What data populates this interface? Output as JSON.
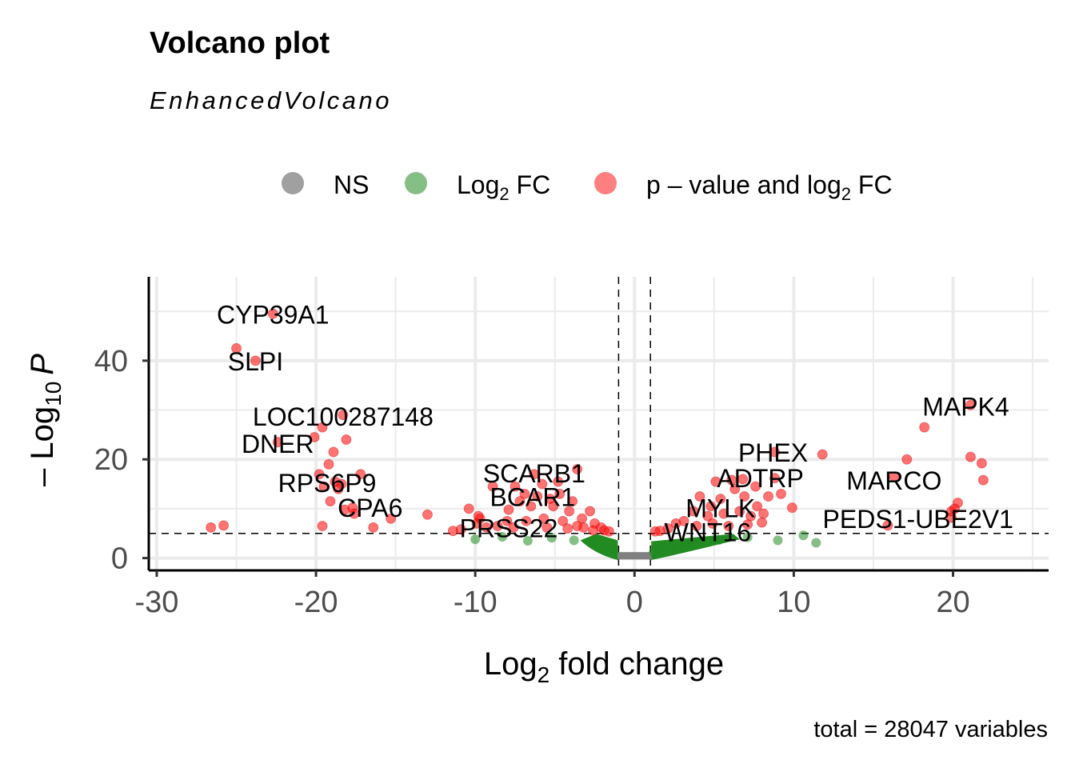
{
  "chart_data": {
    "type": "scatter",
    "title": "Volcano plot",
    "subtitle": "EnhancedVolcano",
    "caption": "total = 28047 variables",
    "xlabel": {
      "base": "Log",
      "sub": "2",
      "rest": " fold change"
    },
    "ylabel": {
      "prefix": "– Log",
      "sub": "10",
      "italic": "P"
    },
    "xlim": [
      -30.5,
      26
    ],
    "ylim": [
      -2.5,
      57
    ],
    "x_ticks": [
      -30,
      -20,
      -10,
      0,
      10,
      20
    ],
    "y_ticks": [
      0,
      20,
      40
    ],
    "fc_cutoff": 1,
    "p_cutoff_neglog10": 5,
    "legend": [
      {
        "key": "ns",
        "label": "NS",
        "color": "#808080"
      },
      {
        "key": "fc",
        "label_base": "Log",
        "label_sub": "2",
        "label_rest": " FC",
        "color": "#228B22"
      },
      {
        "key": "sig",
        "label_base": "p – value and log",
        "label_sub": "2",
        "label_rest": " FC",
        "color": "#FF0000"
      }
    ],
    "colors": {
      "ns": "#808080",
      "fc": "#228B22",
      "sig": "#FF0000",
      "grid": "#ebebeb"
    },
    "points_sig": [
      [
        -22.7,
        49.5
      ],
      [
        -25,
        42.5
      ],
      [
        -23.8,
        40
      ],
      [
        -19.6,
        26.5
      ],
      [
        -18.3,
        29
      ],
      [
        -20.1,
        24.5
      ],
      [
        -18.1,
        24
      ],
      [
        -22.4,
        23.5
      ],
      [
        -18.9,
        21.5
      ],
      [
        -19.2,
        19
      ],
      [
        -19.8,
        17
      ],
      [
        -17.2,
        17
      ],
      [
        -18.8,
        15.5
      ],
      [
        -18.4,
        15
      ],
      [
        -18.6,
        14
      ],
      [
        -19.5,
        14.5
      ],
      [
        -19.1,
        11.5
      ],
      [
        -17.7,
        10.2
      ],
      [
        -18.2,
        9.8
      ],
      [
        -17.6,
        9
      ],
      [
        -19.6,
        6.5
      ],
      [
        -16.4,
        6.2
      ],
      [
        -15.3,
        8
      ],
      [
        -13,
        8.8
      ],
      [
        -26.6,
        6.2
      ],
      [
        -25.8,
        6.6
      ],
      [
        -11.4,
        5.5
      ],
      [
        -9.7,
        8
      ],
      [
        -8.9,
        14.5
      ],
      [
        -7.5,
        14.5
      ],
      [
        -6.3,
        17
      ],
      [
        -5.8,
        15
      ],
      [
        -4.7,
        13
      ],
      [
        -3.6,
        18
      ],
      [
        -7.2,
        11.5
      ],
      [
        -6.5,
        10.5
      ],
      [
        -5.3,
        12
      ],
      [
        -4.1,
        9.5
      ],
      [
        -3.3,
        8
      ],
      [
        -2.8,
        9.5
      ],
      [
        -8,
        7.5
      ],
      [
        -6.8,
        7.5
      ],
      [
        -5.7,
        8
      ],
      [
        -4.5,
        7.5
      ],
      [
        -3.6,
        6.5
      ],
      [
        -2.5,
        7
      ],
      [
        -2.1,
        6.2
      ],
      [
        -9.3,
        6.2
      ],
      [
        -10.4,
        10
      ],
      [
        -9.8,
        8.5
      ],
      [
        -7.9,
        9.8
      ],
      [
        -5.1,
        10.5
      ],
      [
        -3.9,
        11.5
      ],
      [
        -6.1,
        12.5
      ],
      [
        -4.8,
        15.5
      ],
      [
        -6.9,
        13
      ],
      [
        -5.5,
        6.2
      ],
      [
        -4.2,
        6
      ],
      [
        -3.2,
        6.2
      ],
      [
        -2.6,
        5.6
      ],
      [
        -1.9,
        5.6
      ],
      [
        -1.6,
        5.4
      ],
      [
        -7.6,
        6.2
      ],
      [
        -8.6,
        6.5
      ],
      [
        -9.9,
        7
      ],
      [
        -10.9,
        5.8
      ],
      [
        4.1,
        12.5
      ],
      [
        4.8,
        10.5
      ],
      [
        5.4,
        12
      ],
      [
        6.3,
        14
      ],
      [
        6.9,
        12.5
      ],
      [
        7.7,
        10.5
      ],
      [
        3.7,
        9.5
      ],
      [
        4.6,
        8.5
      ],
      [
        5.6,
        9
      ],
      [
        6.6,
        9.5
      ],
      [
        7.3,
        8.5
      ],
      [
        8.1,
        9
      ],
      [
        3.1,
        7.5
      ],
      [
        3.9,
        6.5
      ],
      [
        4.9,
        7
      ],
      [
        5.9,
        6.5
      ],
      [
        7.1,
        6.8
      ],
      [
        8,
        7.2
      ],
      [
        2.1,
        6
      ],
      [
        2.6,
        7
      ],
      [
        1.6,
        5.5
      ],
      [
        1.3,
        5.4
      ],
      [
        5.1,
        15.5
      ],
      [
        6.1,
        15.8
      ],
      [
        6.8,
        16
      ],
      [
        7.6,
        14.5
      ],
      [
        8.4,
        12.5
      ],
      [
        8.8,
        16.2
      ],
      [
        9.2,
        13
      ],
      [
        9.9,
        10.2
      ],
      [
        11.8,
        21
      ],
      [
        8.8,
        21.5
      ],
      [
        17.1,
        20
      ],
      [
        16.3,
        16.5
      ],
      [
        18.2,
        26.5
      ],
      [
        21.1,
        31
      ],
      [
        21.1,
        20.5
      ],
      [
        21.8,
        19.2
      ],
      [
        21.9,
        15.8
      ],
      [
        20.3,
        11.2
      ],
      [
        19.9,
        9.5
      ],
      [
        19.9,
        8.2
      ],
      [
        15.9,
        6.6
      ],
      [
        20.1,
        10
      ]
    ],
    "points_fc": [
      [
        -10,
        3.8
      ],
      [
        -8.3,
        4.3
      ],
      [
        -6.7,
        3.5
      ],
      [
        -5.2,
        4.1
      ],
      [
        -3.8,
        3.6
      ],
      [
        -2.6,
        3.2
      ],
      [
        -1.8,
        2.5
      ],
      [
        -1.3,
        1.5
      ],
      [
        9,
        3.6
      ],
      [
        10.6,
        4.6
      ],
      [
        11.4,
        3.1
      ],
      [
        7.1,
        4.2
      ],
      [
        5.3,
        3.7
      ],
      [
        3.6,
        3.2
      ],
      [
        2.4,
        2.8
      ],
      [
        1.6,
        2
      ],
      [
        1.2,
        1.2
      ]
    ],
    "labels": [
      {
        "text": "CYP39A1",
        "x": -22.7,
        "y": 49.5
      },
      {
        "text": "SLPI",
        "x": -23.8,
        "y": 40
      },
      {
        "text": "LOC100287148",
        "x": -18.3,
        "y": 28.8
      },
      {
        "text": "DNER",
        "x": -22.4,
        "y": 23.3
      },
      {
        "text": "RPS6P9",
        "x": -19.3,
        "y": 15.3
      },
      {
        "text": "CPA6",
        "x": -16.6,
        "y": 10.3
      },
      {
        "text": "SCARB1",
        "x": -6.3,
        "y": 17.3
      },
      {
        "text": "BCAR1",
        "x": -6.4,
        "y": 12.5
      },
      {
        "text": "PRSS22",
        "x": -7.9,
        "y": 6.2
      },
      {
        "text": "PHEX",
        "x": 8.7,
        "y": 21.5
      },
      {
        "text": "ADTRP",
        "x": 7.9,
        "y": 16.3
      },
      {
        "text": "MARCO",
        "x": 16.3,
        "y": 15.8
      },
      {
        "text": "MYLK",
        "x": 5.4,
        "y": 10.2
      },
      {
        "text": "WNT16",
        "x": 4.6,
        "y": 5.4
      },
      {
        "text": "MAPK4",
        "x": 20.8,
        "y": 30.8
      },
      {
        "text": "PEDS1-UBE2V1",
        "x": 17.8,
        "y": 8
      }
    ]
  }
}
